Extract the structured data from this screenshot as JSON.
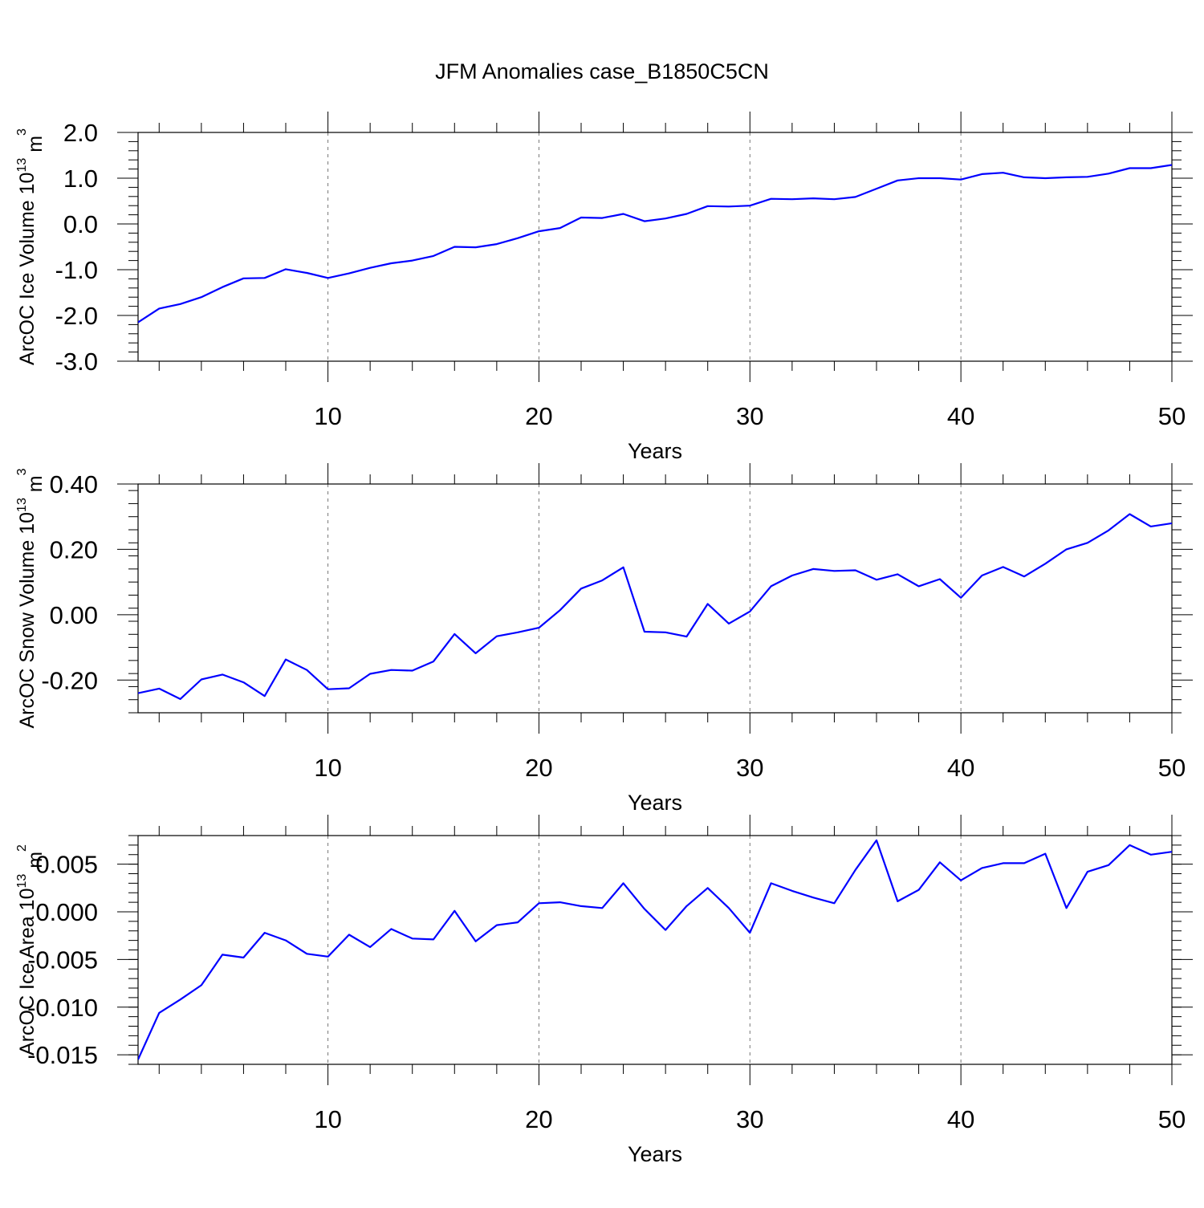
{
  "title": "JFM Anomalies case_B1850C5CN",
  "colors": {
    "line": "#0000ff",
    "axis": "#000000",
    "grid": "#777777"
  },
  "chart_data": [
    {
      "type": "line",
      "title": "JFM Anomalies case_B1850C5CN",
      "xlabel": "Years",
      "ylabel_main": "ArcOC Ice Volume 10",
      "ylabel_sup": "13",
      "ylabel_unit": " m",
      "ylabel_unit_sup": "3",
      "xlim": [
        1,
        50
      ],
      "ylim": [
        -3.0,
        2.0
      ],
      "yticks": [
        -3.0,
        -2.0,
        -1.0,
        0.0,
        1.0,
        2.0
      ],
      "ytick_labels": [
        "-3.0",
        "-2.0",
        "-1.0",
        "0.0",
        "1.0",
        "2.0"
      ],
      "yminor_step": 0.2,
      "xticks": [
        10,
        20,
        30,
        40,
        50
      ],
      "xtick_labels": [
        "10",
        "20",
        "30",
        "40",
        "50"
      ],
      "grid": "vertical dashed at x ticks",
      "x": [
        1,
        2,
        3,
        4,
        5,
        6,
        7,
        8,
        9,
        10,
        11,
        12,
        13,
        14,
        15,
        16,
        17,
        18,
        19,
        20,
        21,
        22,
        23,
        24,
        25,
        26,
        27,
        28,
        29,
        30,
        31,
        32,
        33,
        34,
        35,
        36,
        37,
        38,
        39,
        40,
        41,
        42,
        43,
        44,
        45,
        46,
        47,
        48,
        49,
        50
      ],
      "values": [
        -2.15,
        -1.85,
        -1.75,
        -1.6,
        -1.38,
        -1.19,
        -1.18,
        -0.99,
        -1.07,
        -1.18,
        -1.08,
        -0.96,
        -0.86,
        -0.8,
        -0.7,
        -0.5,
        -0.51,
        -0.44,
        -0.31,
        -0.16,
        -0.09,
        0.14,
        0.13,
        0.22,
        0.06,
        0.12,
        0.22,
        0.39,
        0.38,
        0.4,
        0.55,
        0.54,
        0.56,
        0.54,
        0.59,
        0.77,
        0.95,
        1.0,
        1.0,
        0.97,
        1.09,
        1.12,
        1.02,
        1.0,
        1.02,
        1.03,
        1.1,
        1.22,
        1.22,
        1.29
      ]
    },
    {
      "type": "line",
      "xlabel": "Years",
      "ylabel_main": "ArcOC Snow Volume 10",
      "ylabel_sup": "13",
      "ylabel_unit": " m",
      "ylabel_unit_sup": "3",
      "xlim": [
        1,
        50
      ],
      "ylim": [
        -0.3,
        0.4
      ],
      "yticks": [
        -0.2,
        0.0,
        0.2,
        0.4
      ],
      "ytick_labels": [
        "-0.20",
        "0.00",
        "0.20",
        "0.40"
      ],
      "yminor_step": 0.04,
      "xticks": [
        10,
        20,
        30,
        40,
        50
      ],
      "xtick_labels": [
        "10",
        "20",
        "30",
        "40",
        "50"
      ],
      "grid": "vertical dashed at x ticks",
      "x": [
        1,
        2,
        3,
        4,
        5,
        6,
        7,
        8,
        9,
        10,
        11,
        12,
        13,
        14,
        15,
        16,
        17,
        18,
        19,
        20,
        21,
        22,
        23,
        24,
        25,
        26,
        27,
        28,
        29,
        30,
        31,
        32,
        33,
        34,
        35,
        36,
        37,
        38,
        39,
        40,
        41,
        42,
        43,
        44,
        45,
        46,
        47,
        48,
        49,
        50
      ],
      "values": [
        -0.24,
        -0.226,
        -0.258,
        -0.198,
        -0.183,
        -0.207,
        -0.249,
        -0.137,
        -0.169,
        -0.228,
        -0.225,
        -0.181,
        -0.169,
        -0.171,
        -0.143,
        -0.059,
        -0.118,
        -0.066,
        -0.054,
        -0.04,
        0.014,
        0.08,
        0.105,
        0.145,
        -0.052,
        -0.054,
        -0.067,
        0.033,
        -0.027,
        0.01,
        0.087,
        0.12,
        0.14,
        0.134,
        0.136,
        0.107,
        0.124,
        0.087,
        0.109,
        0.052,
        0.12,
        0.146,
        0.117,
        0.156,
        0.2,
        0.22,
        0.258,
        0.308,
        0.27,
        0.28
      ]
    },
    {
      "type": "line",
      "xlabel": "Years",
      "ylabel_main": "ArcOC Ice Area 10",
      "ylabel_sup": "13",
      "ylabel_unit": " m",
      "ylabel_unit_sup": "2",
      "xlim": [
        1,
        50
      ],
      "ylim": [
        -0.016,
        0.008
      ],
      "yticks": [
        -0.015,
        -0.01,
        -0.005,
        0.0,
        0.005
      ],
      "ytick_labels": [
        "-0.015",
        "-0.010",
        "-0.005",
        "0.000",
        "0.005"
      ],
      "yminor_step": 0.001,
      "xticks": [
        10,
        20,
        30,
        40,
        50
      ],
      "xtick_labels": [
        "10",
        "20",
        "30",
        "40",
        "50"
      ],
      "grid": "vertical dashed at x ticks",
      "x": [
        1,
        2,
        3,
        4,
        5,
        6,
        7,
        8,
        9,
        10,
        11,
        12,
        13,
        14,
        15,
        16,
        17,
        18,
        19,
        20,
        21,
        22,
        23,
        24,
        25,
        26,
        27,
        28,
        29,
        30,
        31,
        32,
        33,
        34,
        35,
        36,
        37,
        38,
        39,
        40,
        41,
        42,
        43,
        44,
        45,
        46,
        47,
        48,
        49,
        50
      ],
      "values": [
        -0.0155,
        -0.0106,
        -0.0092,
        -0.0077,
        -0.0045,
        -0.0048,
        -0.0022,
        -0.003,
        -0.0044,
        -0.0047,
        -0.0024,
        -0.0037,
        -0.0018,
        -0.0028,
        -0.0029,
        0.0001,
        -0.0031,
        -0.0014,
        -0.0011,
        0.0009,
        0.001,
        0.0006,
        0.0004,
        0.003,
        0.0003,
        -0.0019,
        0.0006,
        0.0025,
        0.0004,
        -0.0022,
        0.003,
        0.0022,
        0.0015,
        0.0009,
        0.0044,
        0.0075,
        0.0011,
        0.0023,
        0.0052,
        0.0033,
        0.0046,
        0.0051,
        0.0051,
        0.0061,
        0.0004,
        0.0042,
        0.0049,
        0.007,
        0.006,
        0.0063
      ]
    }
  ]
}
